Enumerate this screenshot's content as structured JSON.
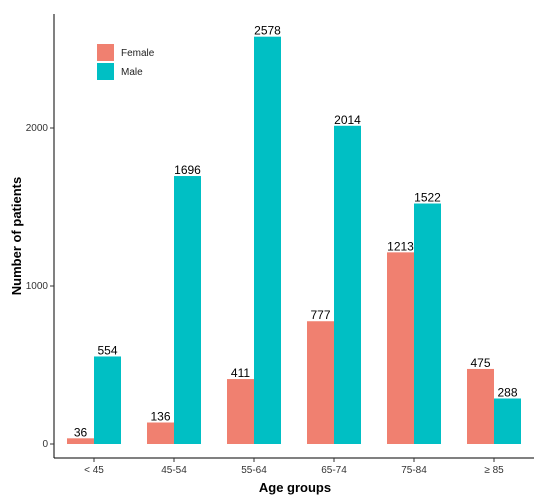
{
  "chart_data": {
    "type": "bar",
    "xlabel": "Age groups",
    "ylabel": "Number of patients",
    "categories": [
      "< 45",
      "45-54",
      "55-64",
      "65-74",
      "75-84",
      "≥ 85"
    ],
    "series": [
      {
        "name": "Female",
        "values": [
          36,
          136,
          411,
          777,
          1213,
          475
        ],
        "color": "#F08070"
      },
      {
        "name": "Male",
        "values": [
          554,
          1696,
          2578,
          2014,
          1522,
          288
        ],
        "color": "#00BFC4"
      }
    ],
    "ylim": [
      0,
      2700
    ],
    "yticks": [
      0,
      1000,
      2000
    ],
    "grid": false,
    "legend_position": "top-left"
  }
}
